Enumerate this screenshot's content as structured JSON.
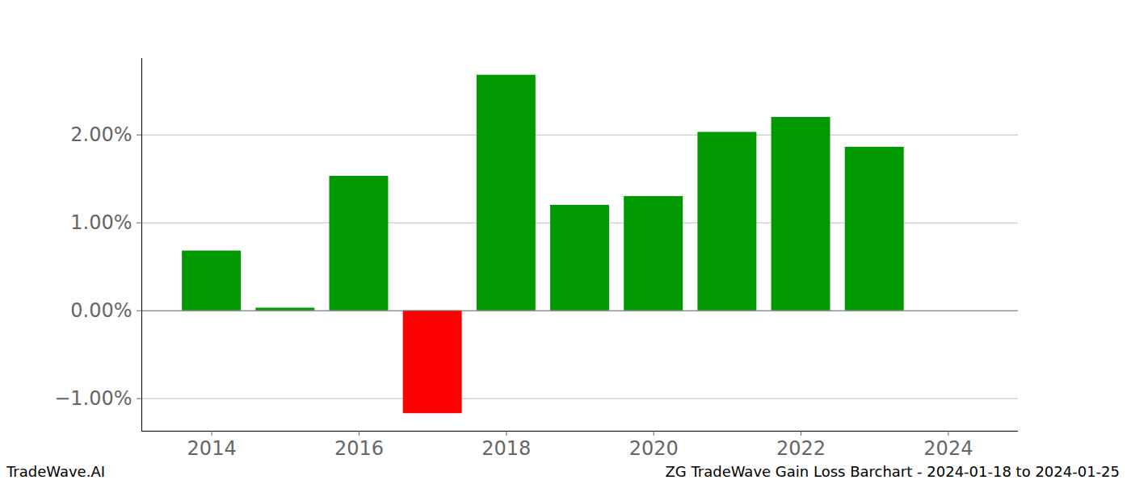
{
  "chart_data": {
    "type": "bar",
    "x": [
      2014,
      2015,
      2016,
      2017,
      2018,
      2019,
      2020,
      2021,
      2022,
      2023
    ],
    "values": [
      0.68,
      0.03,
      1.53,
      -1.17,
      2.68,
      1.2,
      1.3,
      2.03,
      2.2,
      1.86
    ],
    "colors": [
      "#009900",
      "#009900",
      "#009900",
      "#ff0000",
      "#009900",
      "#009900",
      "#009900",
      "#009900",
      "#009900",
      "#009900"
    ],
    "xlim": [
      2013.05,
      2024.95
    ],
    "xticks": [
      2014,
      2016,
      2018,
      2020,
      2022,
      2024
    ],
    "ylim": [
      -1.37,
      2.87
    ],
    "yticks": [
      {
        "value": -1,
        "label": "−1.00%"
      },
      {
        "value": 0,
        "label": "0.00%"
      },
      {
        "value": 1,
        "label": "1.00%"
      },
      {
        "value": 2,
        "label": "2.00%"
      }
    ],
    "grid": true,
    "annotations": [
      "TradeWave.AI",
      "ZG TradeWave Gain Loss Barchart - 2024-01-18 to 2024-01-25"
    ]
  }
}
